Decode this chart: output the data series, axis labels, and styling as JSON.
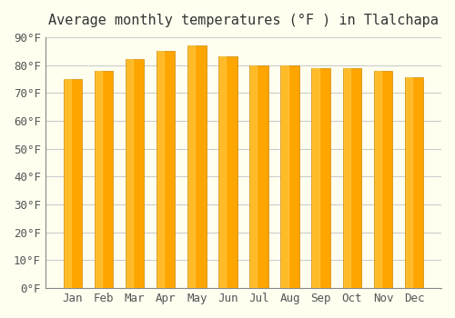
{
  "months": [
    "Jan",
    "Feb",
    "Mar",
    "Apr",
    "May",
    "Jun",
    "Jul",
    "Aug",
    "Sep",
    "Oct",
    "Nov",
    "Dec"
  ],
  "values": [
    75,
    78,
    82,
    85,
    87,
    83,
    80,
    80,
    79,
    79,
    78,
    75.5
  ],
  "title": "Average monthly temperatures (°F ) in Tlalchapa",
  "ylabel": "",
  "ylim": [
    0,
    90
  ],
  "yticks": [
    0,
    10,
    20,
    30,
    40,
    50,
    60,
    70,
    80,
    90
  ],
  "ytick_labels": [
    "0°F",
    "10°F",
    "20°F",
    "30°F",
    "40°F",
    "50°F",
    "60°F",
    "70°F",
    "80°F",
    "90°F"
  ],
  "bar_color": "#FFA500",
  "bar_edge_color": "#CC8800",
  "background_color": "#FFFFF0",
  "grid_color": "#CCCCCC",
  "title_fontsize": 11,
  "tick_fontsize": 9
}
